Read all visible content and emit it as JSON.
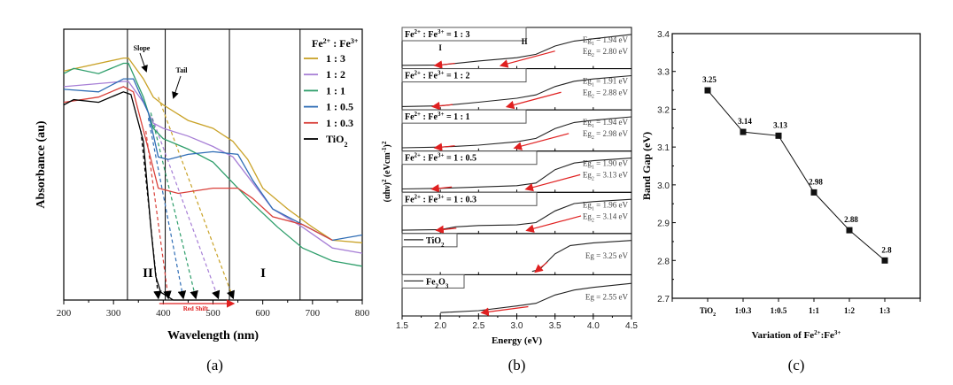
{
  "chart_data": [
    {
      "type": "line",
      "panel_caption": "(a)",
      "xlabel": "Wavelength (nm)",
      "ylabel": "Absorbance (au)",
      "xlim": [
        200,
        800
      ],
      "xticks": [
        "200",
        "300",
        "400",
        "500",
        "600",
        "700",
        "800"
      ],
      "legend": {
        "placement": "top-right",
        "title": {
          "a": "Fe",
          "b": "2+",
          "c": " : Fe",
          "d": "3+"
        }
      },
      "region_lines_nm": [
        328,
        404,
        533,
        675
      ],
      "annotations": {
        "slope": "Slope",
        "tail": "Tail",
        "region_2": "II",
        "region_1": "I",
        "red_shift": "Red Shift"
      },
      "series": [
        {
          "name": "1 : 3",
          "color": "#c9a227",
          "edge_nm": 540,
          "x": [
            200,
            320,
            330,
            360,
            380,
            400,
            450,
            500,
            540,
            570,
            600,
            650,
            700,
            740,
            800
          ],
          "y": [
            0.88,
            0.93,
            0.93,
            0.85,
            0.78,
            0.75,
            0.69,
            0.66,
            0.61,
            0.54,
            0.43,
            0.35,
            0.28,
            0.23,
            0.22
          ]
        },
        {
          "name": "1 : 2",
          "color": "#a77fd6",
          "edge_nm": 510,
          "x": [
            200,
            320,
            330,
            360,
            380,
            400,
            450,
            500,
            540,
            580,
            620,
            680,
            740,
            800
          ],
          "y": [
            0.82,
            0.84,
            0.84,
            0.76,
            0.68,
            0.66,
            0.63,
            0.59,
            0.55,
            0.45,
            0.35,
            0.28,
            0.2,
            0.18
          ]
        },
        {
          "name": "1 : 1",
          "color": "#2e9e6b",
          "edge_nm": 465,
          "x": [
            200,
            220,
            270,
            320,
            330,
            360,
            380,
            400,
            450,
            500,
            540,
            580,
            630,
            680,
            740,
            800
          ],
          "y": [
            0.87,
            0.89,
            0.87,
            0.91,
            0.91,
            0.78,
            0.66,
            0.62,
            0.58,
            0.53,
            0.45,
            0.37,
            0.28,
            0.2,
            0.15,
            0.13
          ]
        },
        {
          "name": "1 : 0.5",
          "color": "#2f6db5",
          "edge_nm": 440,
          "x": [
            200,
            270,
            320,
            340,
            370,
            390,
            410,
            450,
            500,
            550,
            580,
            620,
            680,
            740,
            800
          ],
          "y": [
            0.81,
            0.8,
            0.85,
            0.85,
            0.72,
            0.55,
            0.54,
            0.56,
            0.57,
            0.56,
            0.46,
            0.35,
            0.29,
            0.23,
            0.25
          ]
        },
        {
          "name": "1 : 0.3",
          "color": "#d9403a",
          "edge_nm": 410,
          "x": [
            200,
            270,
            320,
            340,
            370,
            390,
            430,
            500,
            550,
            580,
            620,
            680,
            740
          ],
          "y": [
            0.76,
            0.78,
            0.82,
            0.8,
            0.58,
            0.43,
            0.41,
            0.43,
            0.43,
            0.39,
            0.32,
            0.29,
            0.23
          ]
        },
        {
          "name": "TiO",
          "name_sub": "2",
          "color": "#000000",
          "edge_nm": 390,
          "x": [
            200,
            220,
            270,
            320,
            335,
            360,
            375,
            385,
            395,
            420,
            530
          ],
          "y": [
            0.75,
            0.77,
            0.76,
            0.8,
            0.79,
            0.61,
            0.28,
            0.09,
            0.03,
            0.0,
            0.0
          ]
        }
      ]
    },
    {
      "type": "line",
      "panel_caption": "(b)",
      "xlabel": "Energy (eV)",
      "ylabel": {
        "a": "(αhν)",
        "b": "2",
        "c": " (eVcm",
        "d": "-1",
        "e": ")",
        "f": "2"
      },
      "xlim": [
        1.5,
        4.5
      ],
      "xticks": [
        "1.5",
        "2.0",
        "2.5",
        "3.0",
        "3.5",
        "4.0",
        "4.5"
      ],
      "label_parts": {
        "a": "Fe",
        "b": "2+",
        "c": " : Fe",
        "d": "3+",
        "e": " = "
      },
      "region_labels": {
        "region_1": "I",
        "region_2": "II"
      },
      "eg_parts": {
        "eg": "Eg",
        "sub1": "1",
        "sub2": "2",
        "eq": " = ",
        "unit": " eV"
      },
      "panels": [
        {
          "ratio": "1 : 3",
          "eg1": "1.94",
          "eg2": "2.80",
          "x": [
            1.5,
            2.0,
            2.5,
            3.0,
            3.25,
            3.5,
            3.75,
            4.0,
            4.5
          ],
          "y": [
            0.02,
            0.03,
            0.15,
            0.25,
            0.35,
            0.6,
            0.75,
            0.82,
            0.95
          ]
        },
        {
          "ratio": "1 : 2",
          "eg1": "1.91",
          "eg2": "2.88",
          "x": [
            1.5,
            2.0,
            2.5,
            3.0,
            3.25,
            3.5,
            3.75,
            4.0,
            4.5
          ],
          "y": [
            0.02,
            0.04,
            0.15,
            0.27,
            0.37,
            0.62,
            0.78,
            0.85,
            0.95
          ]
        },
        {
          "ratio": "1 : 1",
          "eg1": "1.94",
          "eg2": "2.98",
          "x": [
            1.5,
            2.0,
            2.5,
            3.0,
            3.25,
            3.5,
            3.75,
            4.0,
            4.5
          ],
          "y": [
            0.02,
            0.04,
            0.1,
            0.2,
            0.3,
            0.6,
            0.78,
            0.85,
            0.95
          ]
        },
        {
          "ratio": "1 : 0.5",
          "eg1": "1.90",
          "eg2": "3.13",
          "x": [
            1.5,
            2.0,
            2.5,
            3.0,
            3.25,
            3.5,
            3.75,
            4.0,
            4.5
          ],
          "y": [
            0.02,
            0.04,
            0.08,
            0.12,
            0.2,
            0.6,
            0.8,
            0.87,
            0.95
          ]
        },
        {
          "ratio": "1 : 0.3",
          "eg1": "1.96",
          "eg2": "3.14",
          "x": [
            1.5,
            2.0,
            2.2,
            2.5,
            3.0,
            3.25,
            3.5,
            3.75,
            4.0,
            4.5
          ],
          "y": [
            0.02,
            0.04,
            0.12,
            0.16,
            0.18,
            0.25,
            0.6,
            0.82,
            0.88,
            0.95
          ]
        },
        {
          "name": "TiO",
          "name_sub": "2",
          "eg": "3.25",
          "x": [
            3.2,
            3.3,
            3.5,
            3.7,
            4.0,
            4.5
          ],
          "y": [
            0.02,
            0.08,
            0.55,
            0.8,
            0.88,
            0.95
          ]
        },
        {
          "name": "Fe",
          "name_sub": "2",
          "name_mid": "O",
          "name_sub2": "3",
          "eg": "2.55",
          "x": [
            2.0,
            2.5,
            3.0,
            3.25,
            3.5,
            3.75,
            4.0,
            4.5
          ],
          "y": [
            0.02,
            0.08,
            0.22,
            0.3,
            0.55,
            0.7,
            0.78,
            0.9
          ]
        }
      ]
    },
    {
      "type": "line",
      "panel_caption": "(c)",
      "xlabel": {
        "a": "Variation of Fe",
        "b": "2+",
        "c": ":Fe",
        "d": "3+"
      },
      "ylabel": "Band Gap (eV)",
      "ylim": [
        2.7,
        3.4
      ],
      "yticks": [
        "2.7",
        "2.8",
        "2.9",
        "3.0",
        "3.1",
        "3.2",
        "3.3",
        "3.4"
      ],
      "categories": [
        {
          "a": "TiO",
          "b": "2"
        },
        {
          "a": "1:0.3"
        },
        {
          "a": "1:0.5"
        },
        {
          "a": "1:1"
        },
        {
          "a": "1:2"
        },
        {
          "a": "1:3"
        }
      ],
      "values": [
        3.25,
        3.14,
        3.13,
        2.98,
        2.88,
        2.8
      ],
      "data_labels": [
        "3.25",
        "3.14",
        "3.13",
        "2.98",
        "2.88",
        "2.8"
      ],
      "marker": "square",
      "color": "#111111"
    }
  ]
}
